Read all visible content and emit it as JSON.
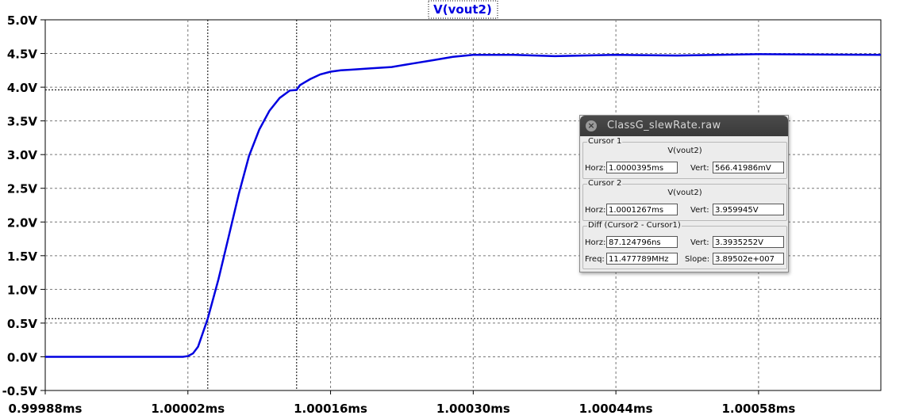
{
  "chart_data": {
    "type": "line",
    "title": "V(vout2)",
    "xlabel": "",
    "ylabel": "",
    "x_unit": "ms",
    "xlim": [
      0.99988,
      1.0007
    ],
    "ylim": [
      -0.5,
      5.0
    ],
    "x_ticks": [
      "0.99988ms",
      "1.00002ms",
      "1.00016ms",
      "1.00030ms",
      "1.00044ms",
      "1.00058ms"
    ],
    "x_tick_values": [
      0.99988,
      1.00002,
      1.00016,
      1.0003,
      1.00044,
      1.00058
    ],
    "y_ticks": [
      "5.0V",
      "4.5V",
      "4.0V",
      "3.5V",
      "3.0V",
      "2.5V",
      "2.0V",
      "1.5V",
      "1.0V",
      "0.5V",
      "0.0V",
      "-0.5V"
    ],
    "y_tick_values": [
      5.0,
      4.5,
      4.0,
      3.5,
      3.0,
      2.5,
      2.0,
      1.5,
      1.0,
      0.5,
      0.0,
      -0.5
    ],
    "grid": true,
    "line_color": "#0000e0",
    "series": [
      {
        "x": [
          0.99988,
          1.0,
          1.00001,
          1.000015,
          1.00002,
          1.000025,
          1.00003,
          1.0000395,
          1.00005,
          1.00006,
          1.00007,
          1.00008,
          1.00009,
          1.0001,
          1.00011,
          1.00012,
          1.0001267,
          1.00013,
          1.00014,
          1.00015,
          1.00016,
          1.00017,
          1.00018,
          1.0002,
          1.00022,
          1.00024,
          1.00026,
          1.00028,
          1.0003,
          1.00034,
          1.00038,
          1.00044,
          1.0005,
          1.00058,
          1.0007
        ],
        "y": [
          0.0,
          0.0,
          0.0,
          0.0,
          0.01,
          0.05,
          0.15,
          0.566,
          1.15,
          1.78,
          2.42,
          2.98,
          3.37,
          3.65,
          3.84,
          3.95,
          3.96,
          4.03,
          4.12,
          4.19,
          4.23,
          4.25,
          4.26,
          4.28,
          4.3,
          4.35,
          4.4,
          4.45,
          4.48,
          4.48,
          4.46,
          4.48,
          4.47,
          4.49,
          4.48
        ]
      }
    ],
    "cursors": {
      "cursor1_x": 1.0000395,
      "cursor1_y": 0.566,
      "cursor2_x": 1.0001267,
      "cursor2_y": 3.96
    }
  },
  "dialog": {
    "title": "ClassG_slewRate.raw",
    "cursor1": {
      "label": "Cursor 1",
      "trace": "V(vout2)",
      "horz_label": "Horz:",
      "horz": "1.0000395ms",
      "vert_label": "Vert:",
      "vert": "566.41986mV"
    },
    "cursor2": {
      "label": "Cursor 2",
      "trace": "V(vout2)",
      "horz_label": "Horz:",
      "horz": "1.0001267ms",
      "vert_label": "Vert:",
      "vert": "3.959945V"
    },
    "diff": {
      "label": "Diff (Cursor2 - Cursor1)",
      "horz_label": "Horz:",
      "horz": "87.124796ns",
      "vert_label": "Vert:",
      "vert": "3.3935252V",
      "freq_label": "Freq:",
      "freq": "11.477789MHz",
      "slope_label": "Slope:",
      "slope": "3.89502e+007"
    }
  }
}
